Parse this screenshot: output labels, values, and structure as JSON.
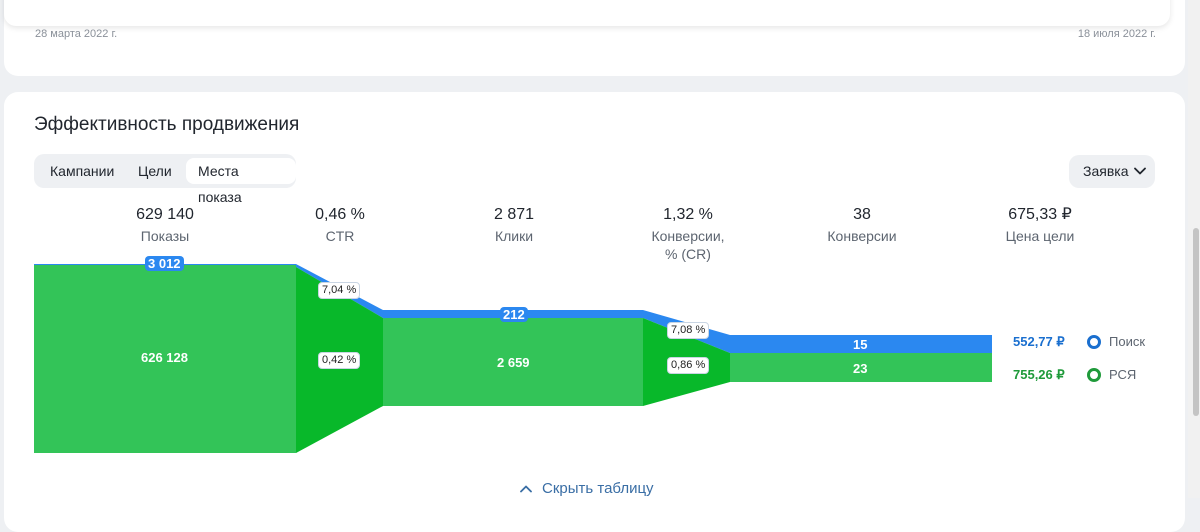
{
  "top_card": {
    "start_date": "28 марта 2022 г.",
    "end_date": "18 июля 2022 г."
  },
  "section": {
    "title": "Эффективность продвижения",
    "tabs": [
      {
        "label": "Кампании",
        "active": false
      },
      {
        "label": "Цели",
        "active": false
      },
      {
        "label": "Места показа",
        "active": true
      }
    ],
    "dropdown_label": "Заявка"
  },
  "metrics": [
    {
      "value": "629 140",
      "label": "Показы"
    },
    {
      "value": "0,46 %",
      "label": "CTR"
    },
    {
      "value": "2 871",
      "label": "Клики"
    },
    {
      "value": "1,32 %",
      "label": "Конверсии,\n% (CR)"
    },
    {
      "value": "38",
      "label": "Конверсии"
    },
    {
      "value": "675,33 ₽",
      "label": "Цена цели"
    }
  ],
  "funnel": {
    "impressions": {
      "search": "3 012",
      "rsya": "626 128"
    },
    "ctr": {
      "search": "7,04 %",
      "rsya": "0,42 %"
    },
    "clicks": {
      "search": "212",
      "rsya": "2 659"
    },
    "cr": {
      "search": "7,08 %",
      "rsya": "0,86 %"
    },
    "conversions": {
      "search": "15",
      "rsya": "23"
    },
    "goal_price": {
      "search": "552,77 ₽",
      "rsya": "755,26 ₽"
    }
  },
  "legend": {
    "search": "Поиск",
    "rsya": "РСЯ"
  },
  "colors": {
    "search": "#2b88f0",
    "rsya": "#33c458",
    "rsya_transition": "#08b82a",
    "search_price": "#1a6fcf",
    "rsya_price": "#1f9a3a"
  },
  "hide_table_label": "Скрыть таблицу"
}
